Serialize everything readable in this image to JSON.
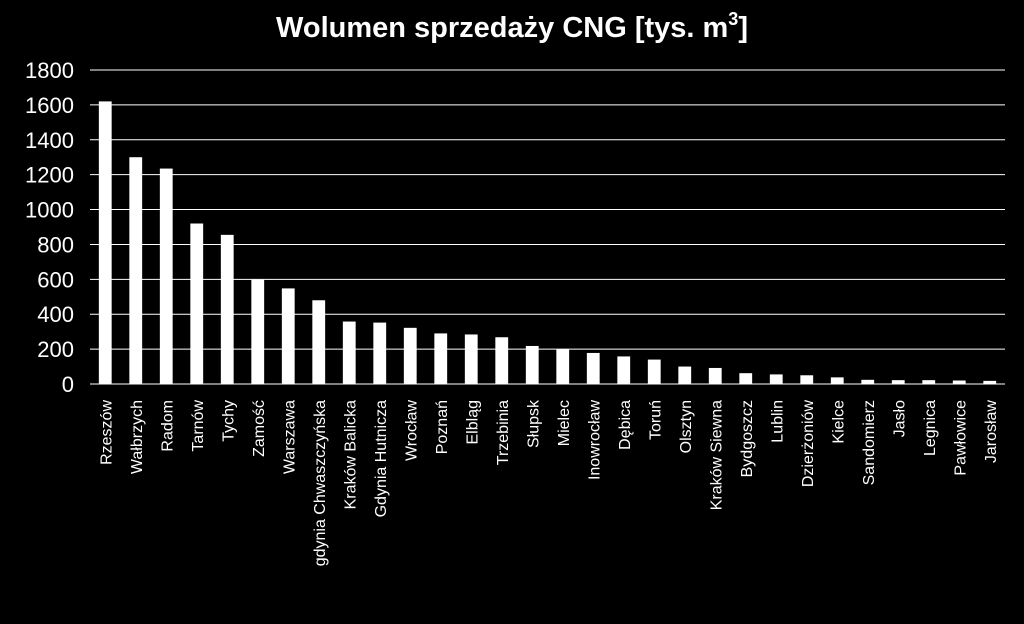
{
  "colors": {
    "background": "#000000",
    "bar": "#ffffff",
    "gridline": "#ffffff",
    "text": "#ffffff"
  },
  "chart_data": {
    "type": "bar",
    "title": "Wolumen sprzedaży CNG [tys. m",
    "title_superscript": "3",
    "title_suffix": "]",
    "xlabel": "",
    "ylabel": "",
    "ylim": [
      0,
      1800
    ],
    "yticks": [
      "0",
      "200",
      "400",
      "600",
      "800",
      "1000",
      "1200",
      "1400",
      "1600",
      "1800"
    ],
    "grid": true,
    "legend": "none",
    "categories": [
      "Rzeszów",
      "Wałbrzych",
      "Radom",
      "Tarnów",
      "Tychy",
      "Zamość",
      "Warszawa",
      "gdynia Chwaszczyńska",
      "Kraków Balicka",
      "Gdynia Hutnicza",
      "Wrocław",
      "Poznań",
      "Elbląg",
      "Trzebinia",
      "Słupsk",
      "Mielec",
      "Inowrocław",
      "Dębica",
      "Toruń",
      "Olsztyn",
      "Kraków Siewna",
      "Bydgoszcz",
      "Lublin",
      "Dzierżoniów",
      "Kielce",
      "Sandomierz",
      "Jasło",
      "Legnica",
      "Pawłowice",
      "Jarosław"
    ],
    "values": [
      1620,
      1300,
      1235,
      920,
      855,
      598,
      548,
      480,
      358,
      352,
      322,
      290,
      284,
      268,
      218,
      198,
      178,
      158,
      140,
      100,
      92,
      62,
      55,
      50,
      38,
      24,
      22,
      22,
      20,
      18
    ]
  }
}
